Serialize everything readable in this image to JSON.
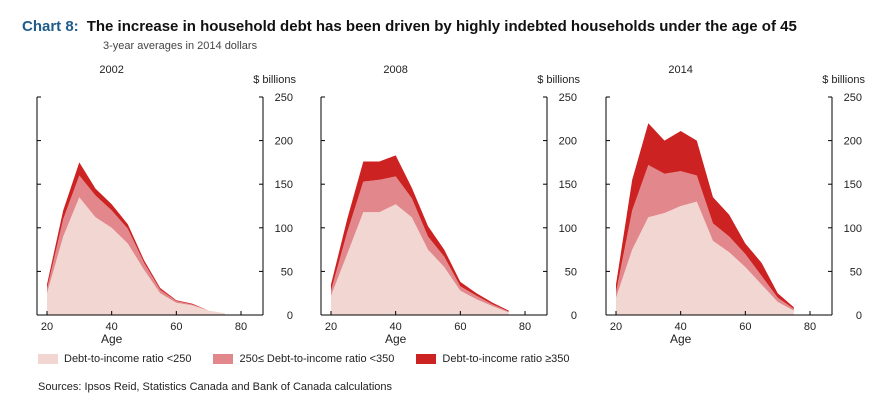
{
  "header": {
    "chart_label": "Chart 8:",
    "title": "The increase in household debt has been driven by highly indebted households under the age of 45",
    "subtitle": "3-year averages in 2014 dollars"
  },
  "source": "Sources: Ipsos Reid, Statistics Canada and Bank of Canada calculations",
  "legend": [
    {
      "label": "Debt-to-income ratio <250",
      "color": "#f1d6d1"
    },
    {
      "label": "250≤ Debt-to-income ratio <350",
      "color": "#e2878c"
    },
    {
      "label": "Debt-to-income ratio ≥350",
      "color": "#cc2222"
    }
  ],
  "chart_data": [
    {
      "type": "area",
      "title": "2002",
      "xlabel": "Age",
      "ylabel": "$ billions",
      "xlim": [
        20,
        80
      ],
      "ylim": [
        0,
        250
      ],
      "xticks": [
        20,
        40,
        60,
        80
      ],
      "yticks": [
        0,
        50,
        100,
        150,
        200,
        250
      ],
      "x": [
        20,
        25,
        30,
        35,
        40,
        45,
        50,
        55,
        60,
        65,
        70,
        75
      ],
      "stacked": true,
      "series": [
        {
          "name": "Debt-to-income ratio <250",
          "values": [
            25,
            90,
            135,
            112,
            100,
            82,
            52,
            25,
            14,
            11,
            5,
            2
          ]
        },
        {
          "name": "250≤ Debt-to-income ratio <350",
          "values": [
            5,
            20,
            25,
            25,
            20,
            17,
            8,
            4,
            2,
            1,
            0,
            0
          ]
        },
        {
          "name": "Debt-to-income ratio ≥350",
          "values": [
            5,
            10,
            15,
            8,
            7,
            5,
            3,
            2,
            1,
            1,
            0,
            0
          ]
        }
      ]
    },
    {
      "type": "area",
      "title": "2008",
      "xlabel": "Age",
      "ylabel": "$ billions",
      "xlim": [
        20,
        80
      ],
      "ylim": [
        0,
        250
      ],
      "xticks": [
        20,
        40,
        60,
        80
      ],
      "yticks": [
        0,
        50,
        100,
        150,
        200,
        250
      ],
      "x": [
        20,
        25,
        30,
        35,
        40,
        45,
        50,
        55,
        60,
        65,
        70,
        75
      ],
      "stacked": true,
      "series": [
        {
          "name": "Debt-to-income ratio <250",
          "values": [
            22,
            70,
            118,
            118,
            127,
            112,
            75,
            55,
            28,
            18,
            10,
            3
          ]
        },
        {
          "name": "250≤ Debt-to-income ratio <350",
          "values": [
            6,
            25,
            35,
            37,
            32,
            22,
            15,
            12,
            5,
            4,
            2,
            1
          ]
        },
        {
          "name": "Debt-to-income ratio ≥350",
          "values": [
            7,
            15,
            23,
            21,
            24,
            12,
            12,
            8,
            5,
            3,
            2,
            1
          ]
        }
      ]
    },
    {
      "type": "area",
      "title": "2014",
      "xlabel": "Age",
      "ylabel": "$ billions",
      "xlim": [
        20,
        80
      ],
      "ylim": [
        0,
        250
      ],
      "xticks": [
        20,
        40,
        60,
        80
      ],
      "yticks": [
        0,
        50,
        100,
        150,
        200,
        250
      ],
      "x": [
        20,
        25,
        30,
        35,
        40,
        45,
        50,
        55,
        60,
        65,
        70,
        75
      ],
      "stacked": true,
      "series": [
        {
          "name": "Debt-to-income ratio <250",
          "values": [
            20,
            75,
            112,
            117,
            125,
            130,
            85,
            72,
            55,
            35,
            15,
            5
          ]
        },
        {
          "name": "250≤ Debt-to-income ratio <350",
          "values": [
            6,
            45,
            60,
            45,
            40,
            30,
            20,
            18,
            15,
            10,
            5,
            2
          ]
        },
        {
          "name": "Debt-to-income ratio ≥350",
          "values": [
            9,
            35,
            48,
            38,
            46,
            40,
            30,
            25,
            12,
            15,
            5,
            2
          ]
        }
      ]
    }
  ]
}
